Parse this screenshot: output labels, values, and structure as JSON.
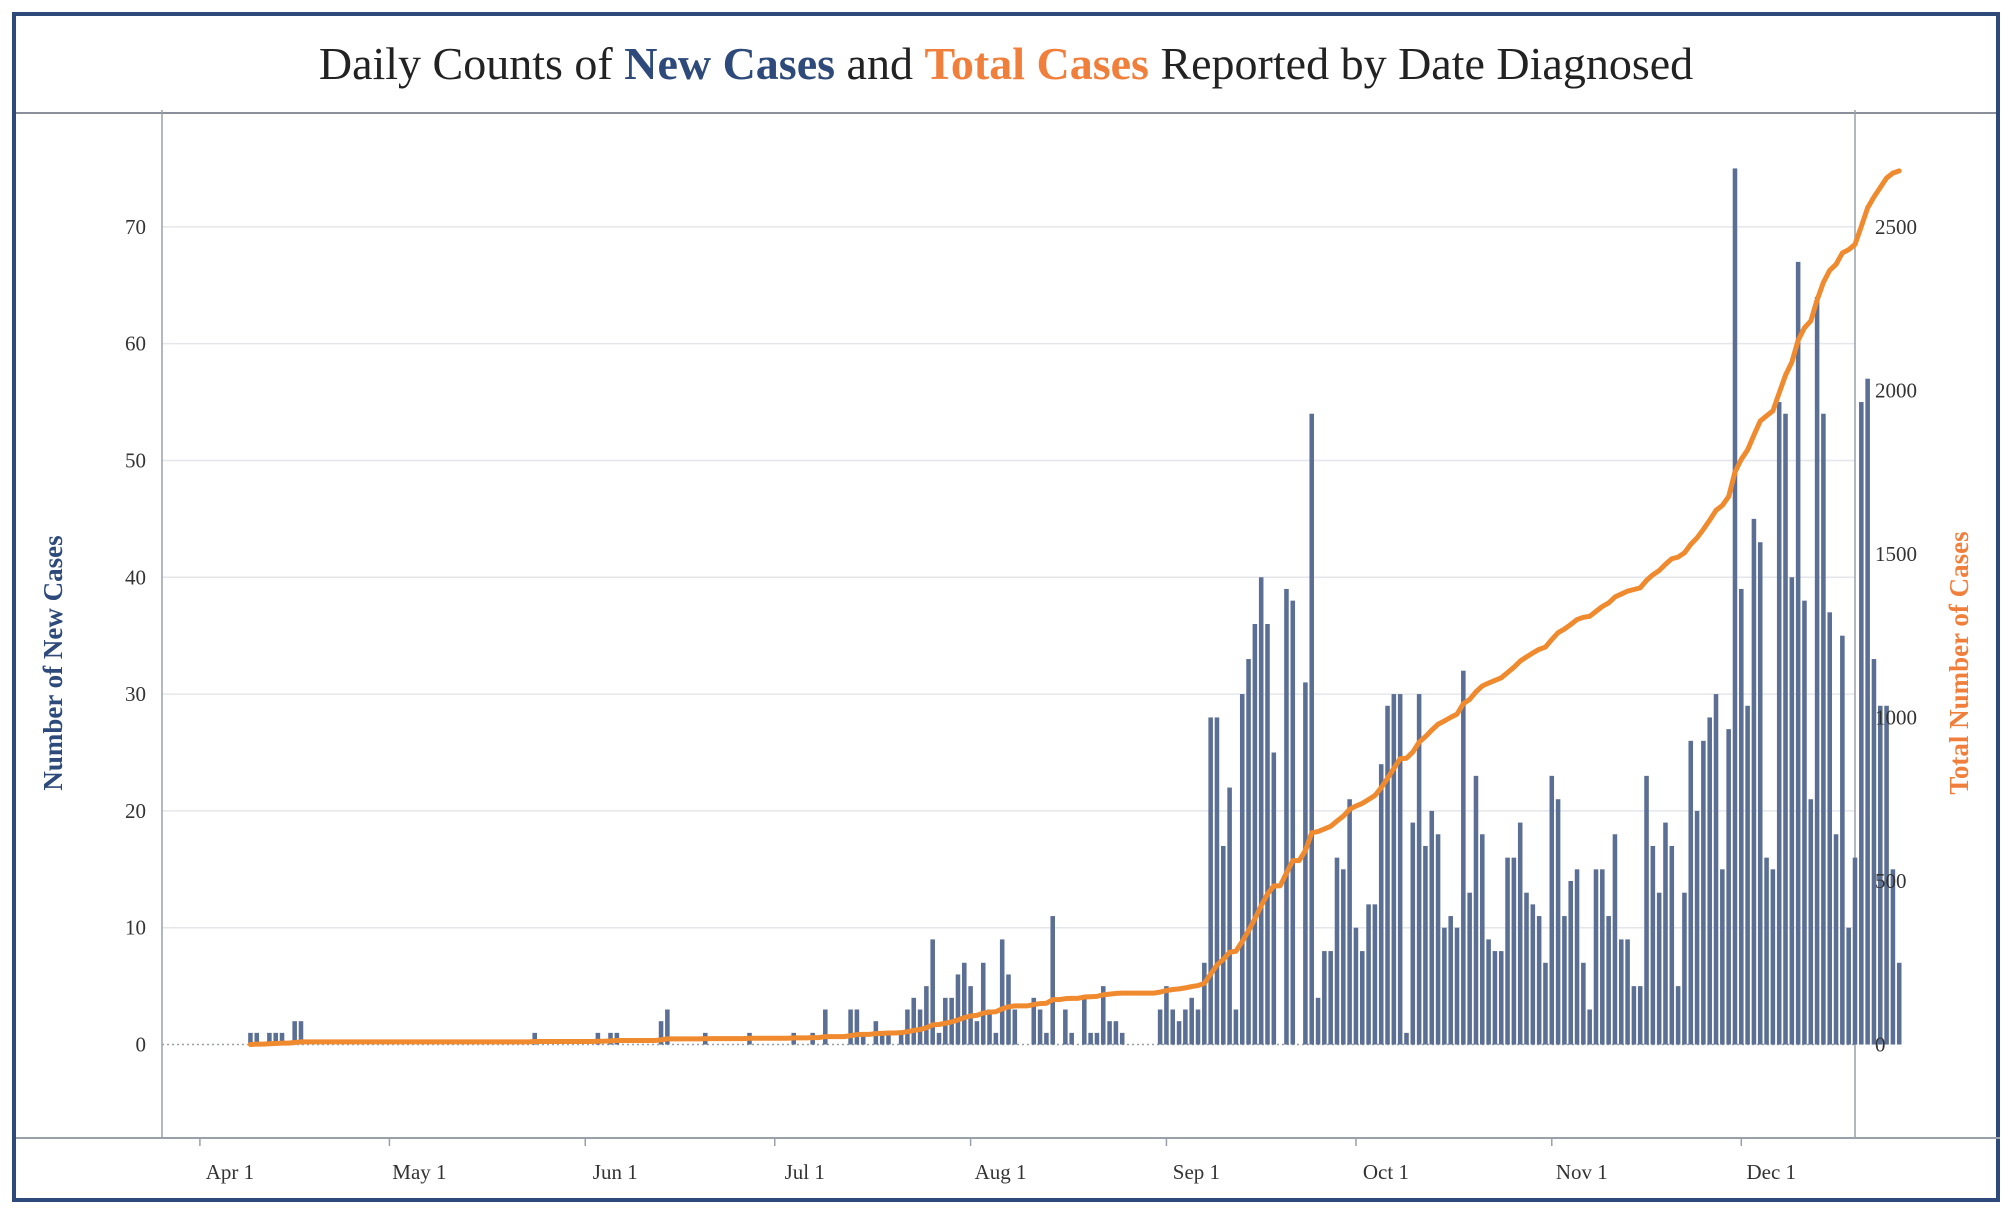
{
  "title": {
    "prefix": "Daily Counts of ",
    "new_cases": "New Cases",
    "and": " and ",
    "total_cases": "Total Cases",
    "suffix": " Reported by Date Diagnosed"
  },
  "colors": {
    "bars": "#5b6e94",
    "line": "#f08a2e",
    "new_label": "#2d4a7a",
    "total_label": "#f07f3c"
  },
  "chart_data": {
    "type": "bar",
    "title": "Daily Counts of New Cases and Total Cases Reported by Date Diagnosed",
    "xlabel": "",
    "ylabel": "Number of New Cases",
    "y2label": "Total Number of Cases",
    "ylim": [
      -8,
      80
    ],
    "y2lim": [
      -286,
      2857
    ],
    "yticks": [
      0,
      10,
      20,
      30,
      40,
      50,
      60,
      70
    ],
    "y2ticks": [
      0,
      500,
      1000,
      1500,
      2000,
      2500
    ],
    "xlim": [
      "2020-03-26",
      "2020-12-19"
    ],
    "xtick_labels": [
      {
        "date": "2020-04-01",
        "label": "Apr 1"
      },
      {
        "date": "2020-05-01",
        "label": "May 1"
      },
      {
        "date": "2020-06-01",
        "label": "Jun 1"
      },
      {
        "date": "2020-07-01",
        "label": "Jul 1"
      },
      {
        "date": "2020-08-01",
        "label": "Aug 1"
      },
      {
        "date": "2020-09-01",
        "label": "Sep 1"
      },
      {
        "date": "2020-10-01",
        "label": "Oct 1"
      },
      {
        "date": "2020-11-01",
        "label": "Nov 1"
      },
      {
        "date": "2020-12-01",
        "label": "Dec 1"
      }
    ],
    "grid": true,
    "start_date": "2020-04-09",
    "new_cases": [
      1,
      1,
      0,
      1,
      1,
      1,
      0,
      2,
      2,
      0,
      0,
      0,
      0,
      0,
      0,
      0,
      0,
      0,
      0,
      0,
      0,
      0,
      0,
      0,
      0,
      0,
      0,
      0,
      0,
      0,
      0,
      0,
      0,
      0,
      0,
      0,
      0,
      0,
      0,
      0,
      0,
      0,
      0,
      0,
      0,
      1,
      0,
      0,
      0,
      0,
      0,
      0,
      0,
      0,
      0,
      1,
      0,
      1,
      1,
      0,
      0,
      0,
      0,
      0,
      0,
      2,
      3,
      0,
      0,
      0,
      0,
      0,
      1,
      0,
      0,
      0,
      0,
      0,
      0,
      1,
      0,
      0,
      0,
      0,
      0,
      0,
      1,
      0,
      0,
      1,
      0,
      3,
      0,
      0,
      0,
      3,
      3,
      1,
      0,
      2,
      1,
      1,
      0,
      1,
      3,
      4,
      3,
      5,
      9,
      1,
      4,
      4,
      6,
      7,
      5,
      2,
      7,
      3,
      1,
      9,
      6,
      3,
      0,
      0,
      4,
      3,
      1,
      11,
      0,
      3,
      1,
      0,
      4,
      1,
      1,
      5,
      2,
      2,
      1,
      0,
      0,
      0,
      0,
      0,
      3,
      5,
      3,
      2,
      3,
      4,
      3,
      7,
      28,
      28,
      17,
      22,
      3,
      30,
      33,
      36,
      40,
      36,
      25,
      0,
      39,
      38,
      0,
      31,
      54,
      4,
      8,
      8,
      16,
      15,
      21,
      10,
      8,
      12,
      12,
      24,
      29,
      30,
      30,
      1,
      19,
      30,
      17,
      20,
      18,
      10,
      11,
      10,
      32,
      13,
      23,
      18,
      9,
      8,
      8,
      16,
      16,
      19,
      13,
      12,
      11,
      7,
      23,
      21,
      11,
      14,
      15,
      7,
      3,
      15,
      15,
      11,
      18,
      9,
      9,
      5,
      5,
      23,
      17,
      13,
      19,
      17,
      5,
      13,
      26,
      20,
      26,
      28,
      30,
      15,
      27,
      75,
      39,
      29,
      45,
      43,
      16,
      15,
      55,
      54,
      40,
      67,
      38,
      21,
      64,
      54,
      37,
      18,
      35,
      10,
      16,
      55,
      57,
      33,
      29,
      29,
      15,
      7
    ],
    "total_cases": [
      0,
      1,
      1,
      2,
      3,
      4,
      4,
      6,
      8,
      8,
      8,
      8,
      8,
      8,
      8,
      8,
      8,
      8,
      8,
      8,
      8,
      8,
      8,
      8,
      8,
      8,
      8,
      8,
      8,
      8,
      8,
      8,
      8,
      8,
      8,
      8,
      8,
      8,
      8,
      8,
      8,
      8,
      8,
      8,
      8,
      9,
      9,
      9,
      9,
      9,
      9,
      9,
      9,
      9,
      9,
      10,
      10,
      11,
      12,
      12,
      12,
      12,
      12,
      12,
      12,
      14,
      17,
      17,
      17,
      17,
      17,
      17,
      18,
      18,
      18,
      18,
      18,
      18,
      18,
      19,
      19,
      19,
      19,
      19,
      19,
      19,
      20,
      20,
      20,
      21,
      21,
      24,
      24,
      24,
      24,
      27,
      30,
      31,
      31,
      33,
      34,
      35,
      35,
      36,
      39,
      43,
      46,
      51,
      60,
      61,
      65,
      69,
      75,
      82,
      87,
      89,
      96,
      99,
      100,
      109,
      115,
      118,
      118,
      118,
      122,
      125,
      126,
      137,
      137,
      140,
      141,
      141,
      145,
      146,
      147,
      152,
      154,
      156,
      157,
      157,
      157,
      157,
      157,
      157,
      160,
      165,
      168,
      170,
      173,
      177,
      180,
      187,
      215,
      243,
      260,
      282,
      285,
      315,
      348,
      384,
      424,
      460,
      485,
      485,
      524,
      562,
      562,
      593,
      647,
      651,
      659,
      667,
      683,
      698,
      719,
      729,
      737,
      749,
      761,
      785,
      814,
      844,
      874,
      875,
      894,
      924,
      941,
      961,
      979,
      989,
      1000,
      1010,
      1042,
      1055,
      1078,
      1096,
      1105,
      1113,
      1121,
      1137,
      1153,
      1172,
      1185,
      1197,
      1208,
      1215,
      1238,
      1259,
      1270,
      1284,
      1299,
      1306,
      1309,
      1324,
      1339,
      1350,
      1368,
      1377,
      1386,
      1391,
      1396,
      1419,
      1436,
      1449,
      1468,
      1485,
      1490,
      1503,
      1529,
      1549,
      1575,
      1603,
      1633,
      1648,
      1675,
      1750,
      1789,
      1818,
      1863,
      1906,
      1922,
      1937,
      1992,
      2046,
      2086,
      2153,
      2191,
      2212,
      2276,
      2330,
      2367,
      2385,
      2420,
      2430,
      2446,
      2501,
      2558,
      2591,
      2620,
      2649,
      2664,
      2671
    ]
  }
}
